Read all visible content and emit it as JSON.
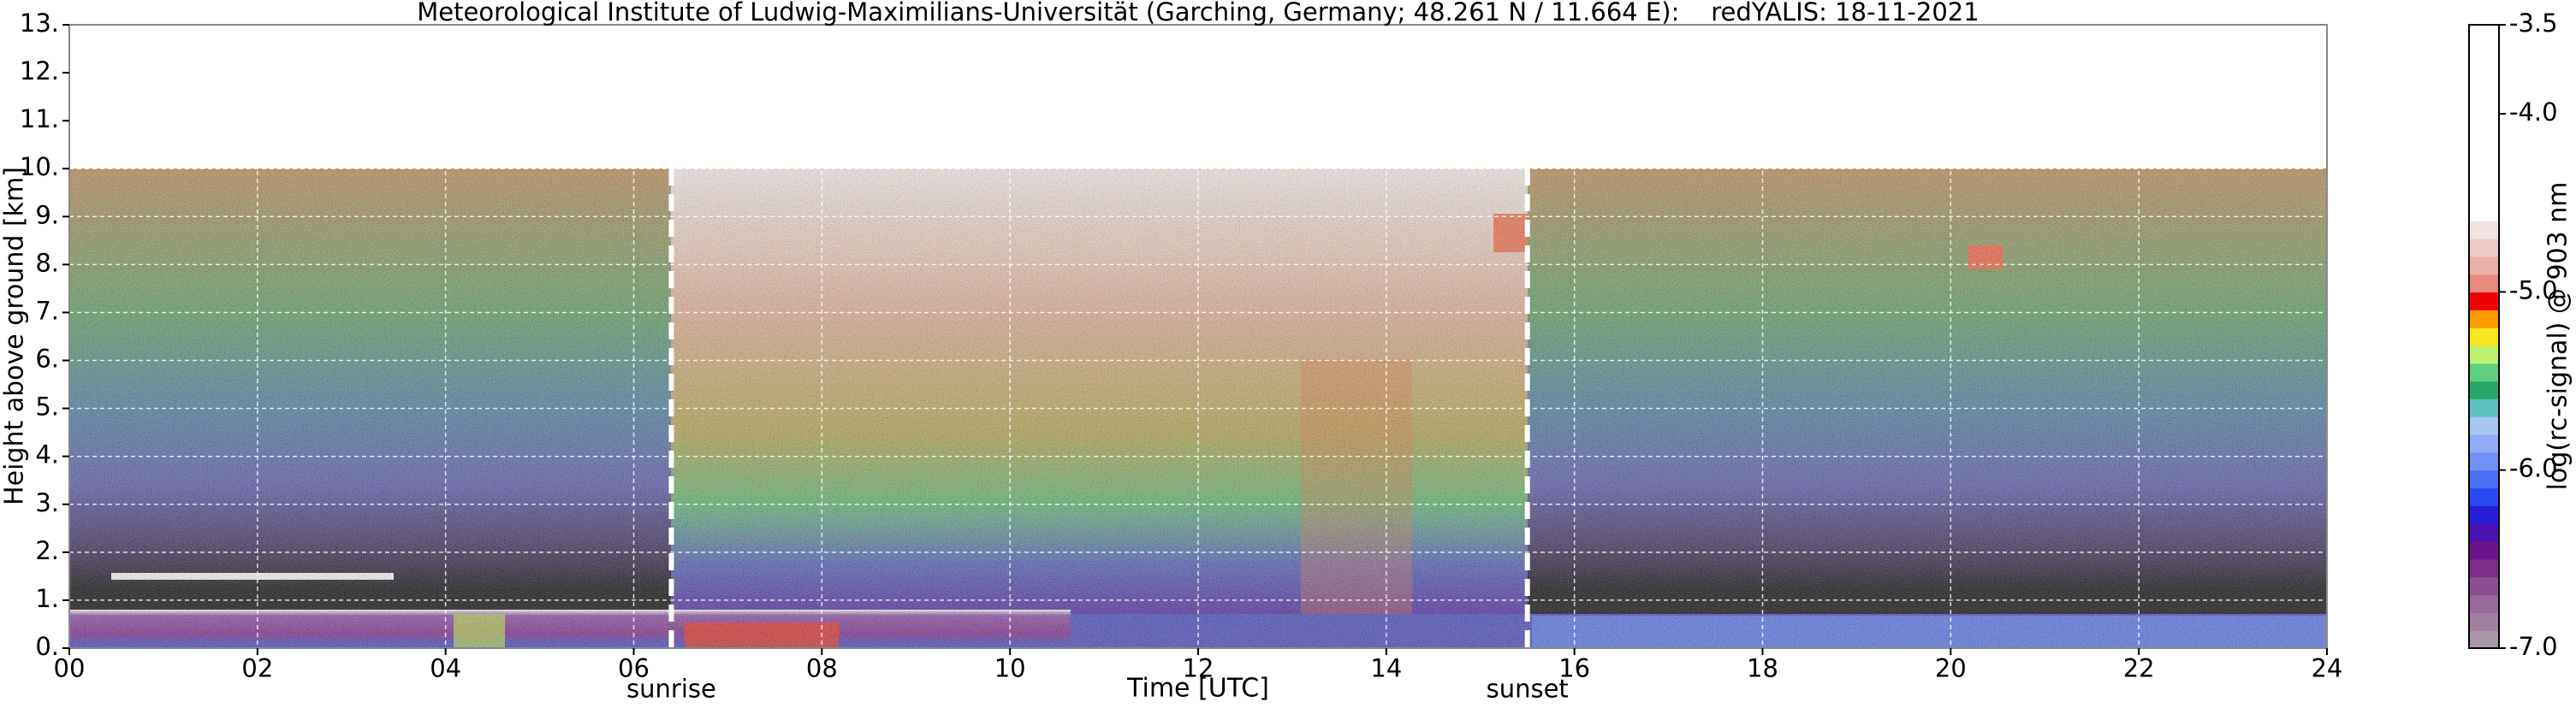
{
  "chart_data": {
    "type": "heatmap",
    "title": "Meteorological Institute of Ludwig-Maximilians-Universität (Garching, Germany; 48.261 N / 11.664 E):    redYALIS: 18-11-2021",
    "xlabel": "Time [UTC]",
    "ylabel": "Height above ground [km]",
    "xlim": [
      0,
      24
    ],
    "xticks": [
      {
        "value": 0,
        "label": "00"
      },
      {
        "value": 2,
        "label": "02"
      },
      {
        "value": 4,
        "label": "04"
      },
      {
        "value": 6,
        "label": "06"
      },
      {
        "value": 8,
        "label": "08"
      },
      10,
      12,
      14,
      16,
      18,
      20,
      22,
      24
    ],
    "ylim": [
      0,
      13
    ],
    "yticks": [
      {
        "value": 0,
        "label": "0."
      },
      {
        "value": 1,
        "label": "1."
      },
      {
        "value": 2,
        "label": "2."
      },
      {
        "value": 3,
        "label": "3."
      },
      {
        "value": 4,
        "label": "4."
      },
      {
        "value": 5,
        "label": "5."
      },
      {
        "value": 6,
        "label": "6."
      },
      {
        "value": 7,
        "label": "7."
      },
      {
        "value": 8,
        "label": "8."
      },
      {
        "value": 9,
        "label": "9."
      },
      {
        "value": 10,
        "label": "10."
      },
      {
        "value": 11,
        "label": "11."
      },
      {
        "value": 12,
        "label": "12."
      },
      {
        "value": 13,
        "label": "13."
      }
    ],
    "grid": true,
    "annotations": [
      {
        "text": "sunrise",
        "x": 6.4
      },
      {
        "text": "sunset",
        "x": 15.5
      }
    ],
    "colorbar": {
      "label": "log(rc-signal) @ 903 nm",
      "lim": [
        -7,
        -3.5
      ],
      "ticks": [
        -3.5,
        {
          "value": -4,
          "label": "-4.0"
        },
        {
          "value": -5,
          "label": "-5.0"
        },
        {
          "value": -6,
          "label": "-6.0"
        },
        {
          "value": -7,
          "label": "-7.0"
        }
      ],
      "colors": [
        "#a895a8",
        "#a07f9f",
        "#98699a",
        "#8c4f90",
        "#7d2f88",
        "#6d148a",
        "#4a12b0",
        "#2a1fd8",
        "#2848f0",
        "#4a70f5",
        "#7090f5",
        "#90acf5",
        "#a8c4f0",
        "#5fc0c0",
        "#28a868",
        "#60d080",
        "#c0f070",
        "#f8e820",
        "#ff9a00",
        "#f00000",
        "#e88a80",
        "#eab0a8",
        "#eecbc8",
        "#f2e2e2",
        "#ffffff",
        "#ffffff",
        "#ffffff",
        "#ffffff",
        "#ffffff",
        "#ffffff",
        "#ffffff",
        "#ffffff",
        "#ffffff",
        "#ffffff",
        "#ffffff"
      ]
    }
  }
}
